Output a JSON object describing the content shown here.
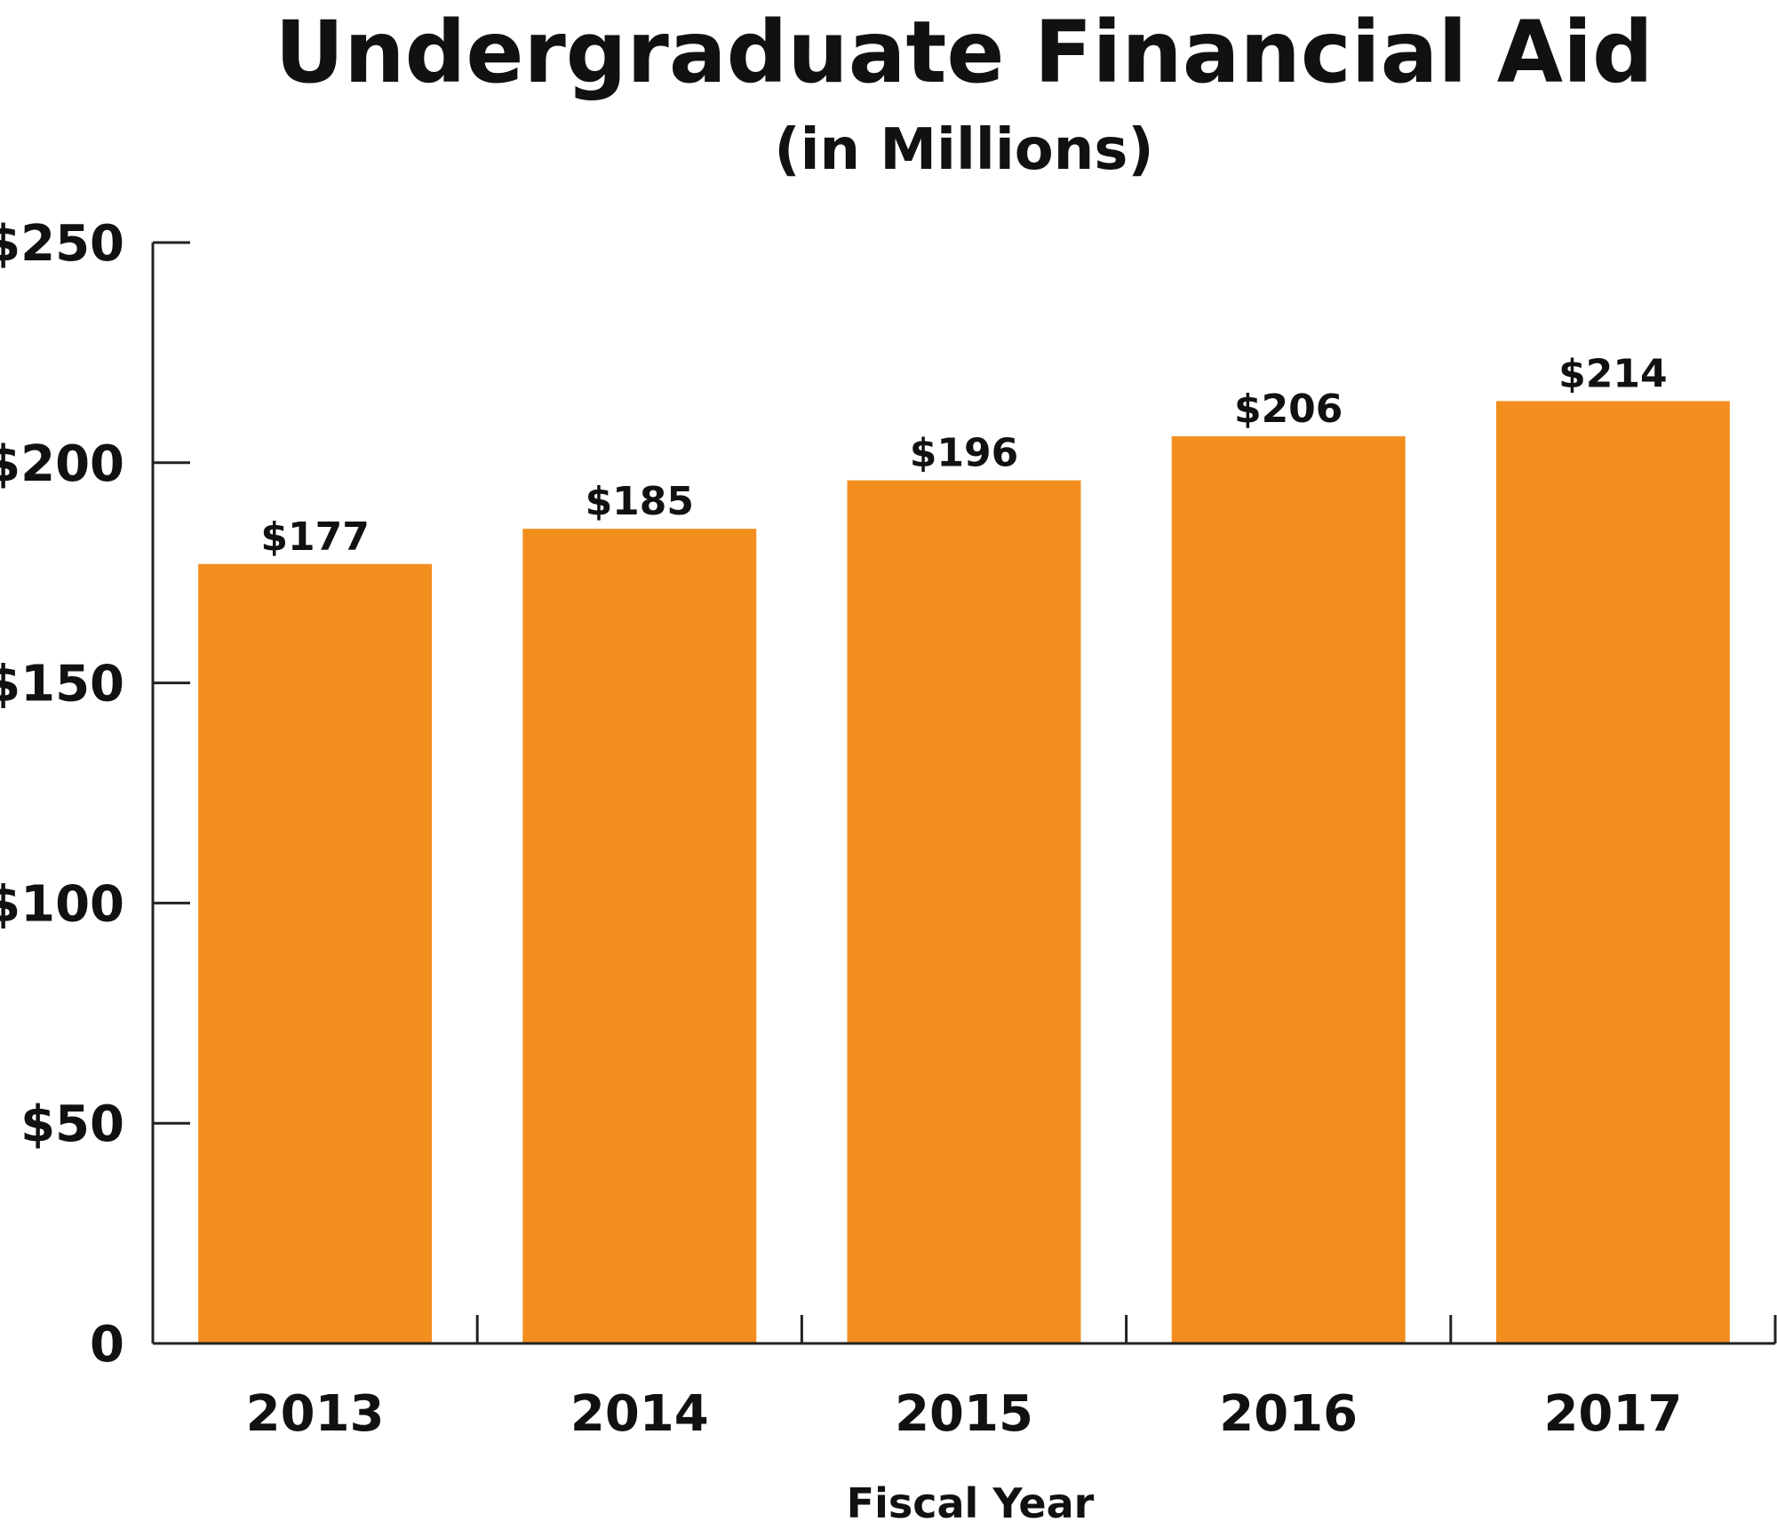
{
  "chart_data": {
    "type": "bar",
    "title": "Undergraduate Financial Aid",
    "subtitle": "(in Millions)",
    "xlabel": "Fiscal Year",
    "ylabel": "",
    "categories": [
      "2013",
      "2014",
      "2015",
      "2016",
      "2017"
    ],
    "values": [
      177,
      185,
      196,
      206,
      214
    ],
    "data_labels": [
      "$177",
      "$185",
      "$196",
      "$206",
      "$214"
    ],
    "ylim": [
      0,
      250
    ],
    "yticks": [
      0,
      50,
      100,
      150,
      200,
      250
    ],
    "ytick_labels": [
      "0",
      "$50",
      "$100",
      "$150",
      "$200",
      "$250"
    ],
    "grid": false,
    "legend": "none",
    "bar_color": "#F28E1E"
  }
}
